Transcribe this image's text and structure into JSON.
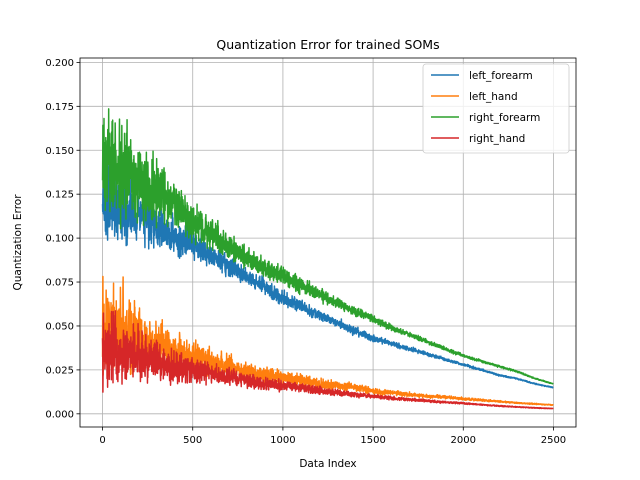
{
  "chart_data": {
    "type": "line",
    "title": "Quantization Error for trained SOMs",
    "xlabel": "Data Index",
    "ylabel": "Quantization Error",
    "xlim": [
      -125,
      2625
    ],
    "ylim": [
      -0.0075,
      0.2025
    ],
    "xticks": [
      0,
      500,
      1000,
      1500,
      2000,
      2500
    ],
    "yticks": [
      0.0,
      0.025,
      0.05,
      0.075,
      0.1,
      0.125,
      0.15,
      0.175,
      0.2
    ],
    "xtick_labels": [
      "0",
      "500",
      "1000",
      "1500",
      "2000",
      "2500"
    ],
    "ytick_labels": [
      "0.000",
      "0.025",
      "0.050",
      "0.075",
      "0.100",
      "0.125",
      "0.150",
      "0.175",
      "0.200"
    ],
    "grid": true,
    "legend_position": "top-right",
    "n_points": 2500,
    "series": [
      {
        "name": "left_forearm",
        "color": "#1f77b4",
        "x": [
          0,
          100,
          200,
          300,
          400,
          500,
          600,
          700,
          800,
          900,
          1000,
          1100,
          1200,
          1300,
          1400,
          1500,
          1600,
          1700,
          1800,
          1900,
          2000,
          2100,
          2200,
          2300,
          2400,
          2500
        ],
        "y": [
          0.12,
          0.118,
          0.112,
          0.107,
          0.101,
          0.096,
          0.09,
          0.084,
          0.078,
          0.072,
          0.066,
          0.061,
          0.056,
          0.052,
          0.047,
          0.043,
          0.04,
          0.037,
          0.034,
          0.031,
          0.028,
          0.025,
          0.022,
          0.02,
          0.017,
          0.015
        ],
        "noise": [
          0.02,
          0.016,
          0.013,
          0.011,
          0.009,
          0.007,
          0.006,
          0.005,
          0.0045,
          0.004,
          0.0035,
          0.003,
          0.0025,
          0.002,
          0.002,
          0.0015,
          0.0012,
          0.001,
          0.0008,
          0.0007,
          0.0006,
          0.0005,
          0.0004,
          0.0003,
          0.0003,
          0.0002
        ]
      },
      {
        "name": "left_hand",
        "color": "#ff7f0e",
        "x": [
          0,
          100,
          200,
          300,
          400,
          500,
          600,
          700,
          800,
          900,
          1000,
          1100,
          1200,
          1300,
          1400,
          1500,
          1600,
          1700,
          1800,
          1900,
          2000,
          2100,
          2200,
          2300,
          2400,
          2500
        ],
        "y": [
          0.05,
          0.047,
          0.043,
          0.039,
          0.035,
          0.032,
          0.029,
          0.027,
          0.024,
          0.022,
          0.021,
          0.019,
          0.017,
          0.016,
          0.015,
          0.013,
          0.012,
          0.011,
          0.01,
          0.0095,
          0.0085,
          0.0078,
          0.007,
          0.0062,
          0.0056,
          0.005
        ],
        "noise": [
          0.024,
          0.02,
          0.015,
          0.012,
          0.009,
          0.007,
          0.006,
          0.005,
          0.0045,
          0.004,
          0.0035,
          0.003,
          0.0025,
          0.002,
          0.0018,
          0.0015,
          0.0012,
          0.001,
          0.0008,
          0.0007,
          0.0006,
          0.0005,
          0.0004,
          0.0003,
          0.0003,
          0.0002
        ]
      },
      {
        "name": "right_forearm",
        "color": "#2ca02c",
        "x": [
          0,
          100,
          200,
          300,
          400,
          500,
          600,
          700,
          800,
          900,
          1000,
          1100,
          1200,
          1300,
          1400,
          1500,
          1600,
          1700,
          1800,
          1900,
          2000,
          2100,
          2200,
          2300,
          2400,
          2500
        ],
        "y": [
          0.14,
          0.138,
          0.132,
          0.126,
          0.118,
          0.11,
          0.102,
          0.095,
          0.089,
          0.083,
          0.078,
          0.073,
          0.068,
          0.063,
          0.058,
          0.054,
          0.049,
          0.045,
          0.041,
          0.037,
          0.033,
          0.03,
          0.027,
          0.024,
          0.02,
          0.017
        ],
        "noise": [
          0.025,
          0.022,
          0.017,
          0.014,
          0.011,
          0.009,
          0.007,
          0.006,
          0.005,
          0.0045,
          0.004,
          0.0035,
          0.003,
          0.0025,
          0.002,
          0.0018,
          0.0015,
          0.0012,
          0.001,
          0.0008,
          0.0007,
          0.0006,
          0.0005,
          0.0004,
          0.0003,
          0.0002
        ]
      },
      {
        "name": "right_hand",
        "color": "#d62728",
        "x": [
          0,
          100,
          200,
          300,
          400,
          500,
          600,
          700,
          800,
          900,
          1000,
          1100,
          1200,
          1300,
          1400,
          1500,
          1600,
          1700,
          1800,
          1900,
          2000,
          2100,
          2200,
          2300,
          2400,
          2500
        ],
        "y": [
          0.04,
          0.036,
          0.033,
          0.03,
          0.027,
          0.025,
          0.023,
          0.021,
          0.019,
          0.017,
          0.016,
          0.015,
          0.013,
          0.012,
          0.011,
          0.01,
          0.009,
          0.0082,
          0.0074,
          0.0066,
          0.006,
          0.0052,
          0.0045,
          0.0039,
          0.0034,
          0.003
        ],
        "noise": [
          0.018,
          0.014,
          0.011,
          0.009,
          0.007,
          0.006,
          0.005,
          0.0042,
          0.0036,
          0.003,
          0.0025,
          0.002,
          0.0018,
          0.0015,
          0.0012,
          0.001,
          0.0008,
          0.0007,
          0.0006,
          0.0005,
          0.0004,
          0.0003,
          0.0003,
          0.0002,
          0.0002,
          0.0001
        ]
      }
    ]
  }
}
